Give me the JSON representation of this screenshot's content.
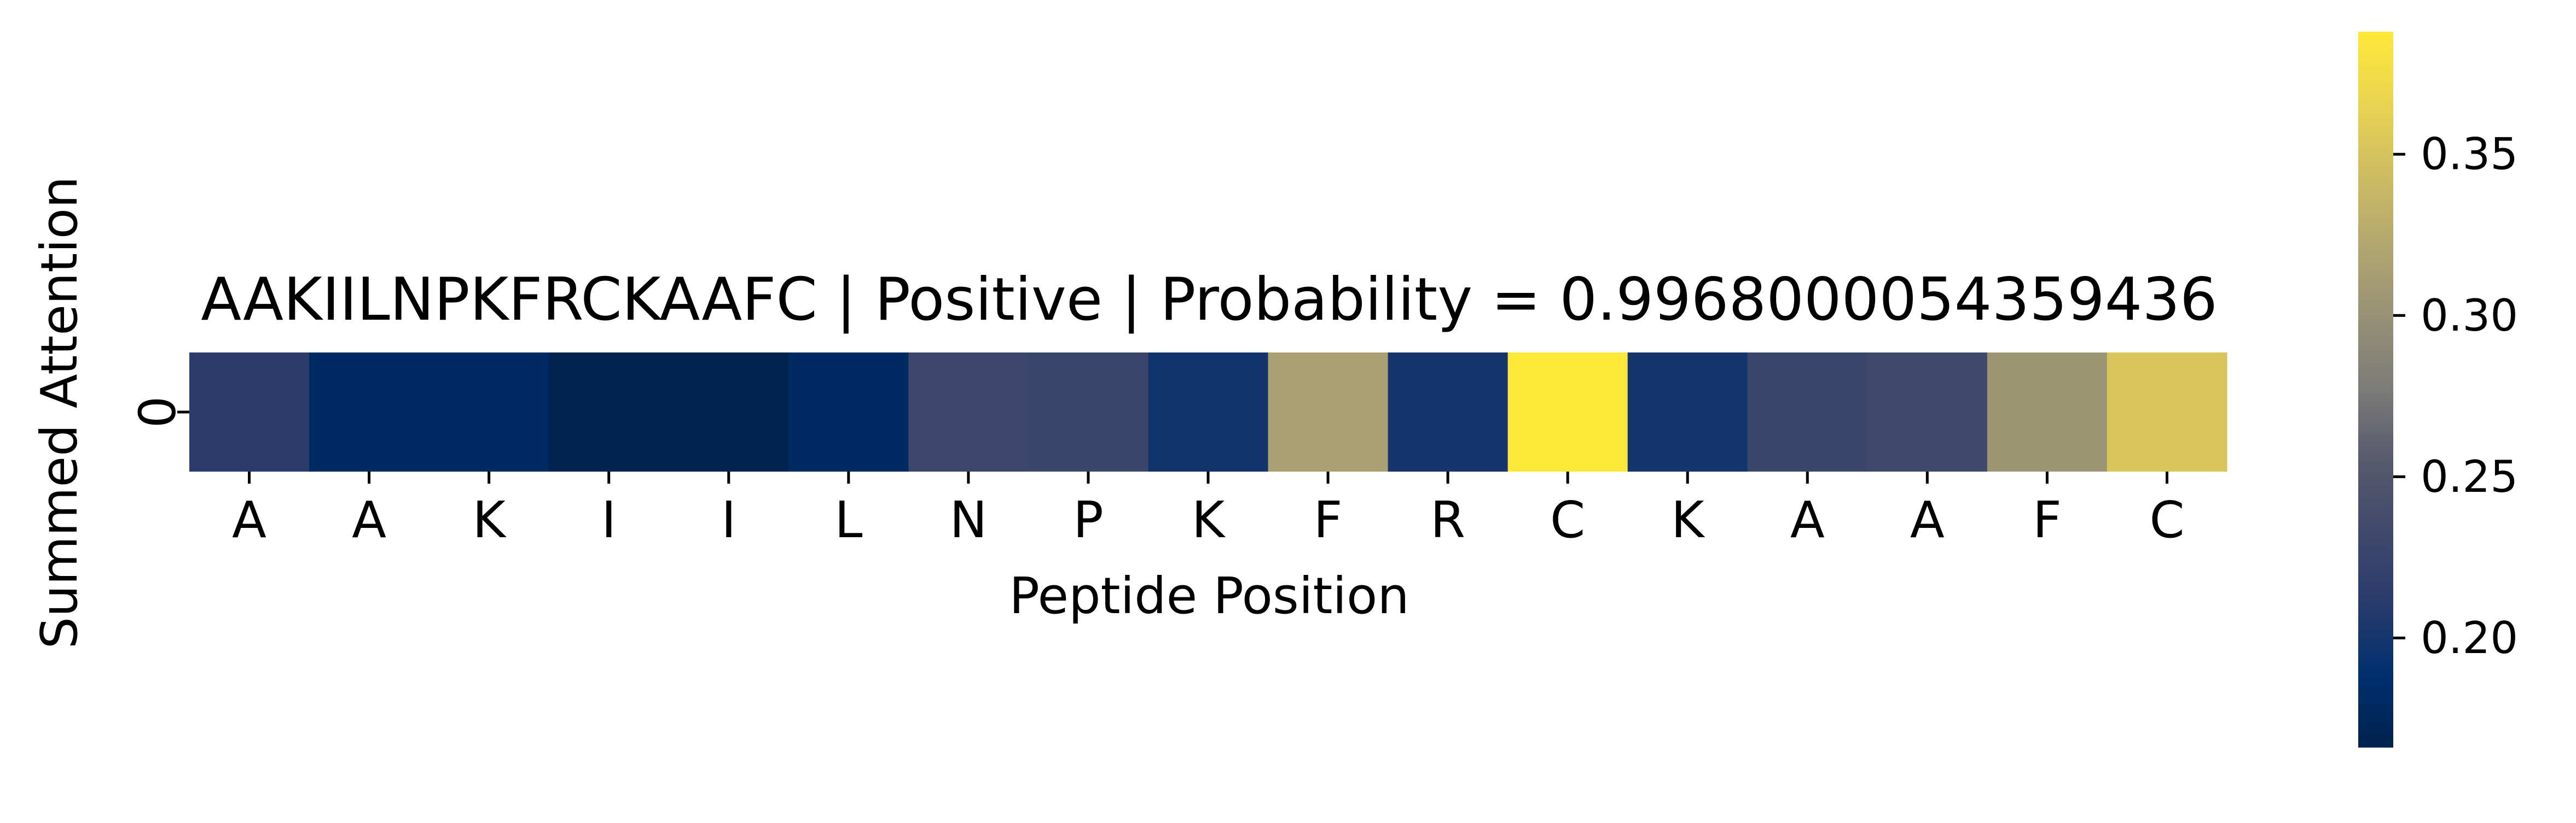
{
  "chart_data": {
    "type": "heatmap",
    "title": "AAKIILNPKFRCKAAFC | Positive | Probability = 0.9968000054359436",
    "xlabel": "Peptide Position",
    "ylabel": "Summed Attention",
    "x_tick_labels": [
      "A",
      "A",
      "K",
      "I",
      "I",
      "L",
      "N",
      "P",
      "K",
      "F",
      "R",
      "C",
      "K",
      "A",
      "A",
      "F",
      "C"
    ],
    "y_tick_labels": [
      "0"
    ],
    "values": [
      [
        0.213,
        0.18,
        0.18,
        0.167,
        0.167,
        0.18,
        0.23,
        0.228,
        0.198,
        0.315,
        0.201,
        0.387,
        0.2,
        0.228,
        0.232,
        0.305,
        0.352
      ]
    ],
    "colorbar": {
      "colormap": "cividis",
      "vmin": 0.166,
      "vmax": 0.388,
      "ticks": [
        0.2,
        0.25,
        0.3,
        0.35
      ],
      "tick_labels": [
        "0.20",
        "0.25",
        "0.30",
        "0.35"
      ]
    },
    "grid": false,
    "legend": "colorbar-right"
  }
}
